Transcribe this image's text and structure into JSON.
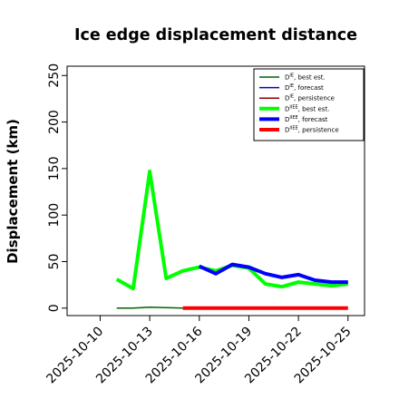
{
  "chart_data": {
    "type": "line",
    "title": "Ice edge displacement distance",
    "xlabel": "",
    "ylabel": "Displacement (km)",
    "x_ticks": [
      "2025-10-10",
      "2025-10-13",
      "2025-10-16",
      "2025-10-19",
      "2025-10-22",
      "2025-10-25"
    ],
    "highlighted_x_tick": "2025-10-16",
    "highlight_color": "#228b22",
    "y_ticks": [
      0,
      50,
      100,
      150,
      200,
      250
    ],
    "xlim": [
      "2025-10-08",
      "2025-10-26"
    ],
    "ylim": [
      -8,
      260
    ],
    "grid": false,
    "legend_position": "top-right",
    "series": [
      {
        "key": "thin_best",
        "name": "D^IE, best est.",
        "color": "#006400",
        "width": 1.5,
        "x": [
          "2025-10-11",
          "2025-10-12",
          "2025-10-13",
          "2025-10-14",
          "2025-10-15"
        ],
        "y": [
          0,
          0,
          1,
          0.5,
          0
        ]
      },
      {
        "key": "thin_forecast",
        "name": "D^IE, forecast",
        "color": "#0000cd",
        "width": 1.5,
        "x": [],
        "y": []
      },
      {
        "key": "thin_persistence",
        "name": "D^IE, persistence",
        "color": "#8b0000",
        "width": 1.5,
        "x": [],
        "y": []
      },
      {
        "key": "thick_best",
        "name": "D^IIEE, best est.",
        "color": "#00ff00",
        "width": 4,
        "x": [
          "2025-10-11",
          "2025-10-12",
          "2025-10-13",
          "2025-10-14",
          "2025-10-15",
          "2025-10-16",
          "2025-10-17",
          "2025-10-18",
          "2025-10-19",
          "2025-10-20",
          "2025-10-21",
          "2025-10-22",
          "2025-10-23",
          "2025-10-24",
          "2025-10-25"
        ],
        "y": [
          31,
          21,
          147,
          32,
          40,
          44,
          40,
          46,
          43,
          26,
          23,
          28,
          26,
          24,
          26
        ]
      },
      {
        "key": "thick_forecast",
        "name": "D^IIEE, forecast",
        "color": "#0000ff",
        "width": 4,
        "x": [
          "2025-10-16",
          "2025-10-17",
          "2025-10-18",
          "2025-10-19",
          "2025-10-20",
          "2025-10-21",
          "2025-10-22",
          "2025-10-23",
          "2025-10-24",
          "2025-10-25"
        ],
        "y": [
          45,
          37,
          47,
          44,
          37,
          33,
          36,
          30,
          28,
          28
        ]
      },
      {
        "key": "thick_persistence",
        "name": "D^IIEE, persistence",
        "color": "#ff0000",
        "width": 4,
        "x": [
          "2025-10-15",
          "2025-10-25"
        ],
        "y": [
          0,
          0
        ]
      }
    ],
    "legend": [
      {
        "prefix": "D",
        "sup": "IE",
        "suffix": ", best est.",
        "color": "#006400",
        "width": 1.5
      },
      {
        "prefix": "D",
        "sup": "IE",
        "suffix": ", forecast",
        "color": "#0000cd",
        "width": 1.5
      },
      {
        "prefix": "D",
        "sup": "IE",
        "suffix": ", persistence",
        "color": "#8b0000",
        "width": 1.5
      },
      {
        "prefix": "D",
        "sup": "IIEE",
        "suffix": ", best est.",
        "color": "#00ff00",
        "width": 4
      },
      {
        "prefix": "D",
        "sup": "IIEE",
        "suffix": ", forecast",
        "color": "#0000ff",
        "width": 4
      },
      {
        "prefix": "D",
        "sup": "IIEE",
        "suffix": ", persistence",
        "color": "#ff0000",
        "width": 4
      }
    ]
  }
}
